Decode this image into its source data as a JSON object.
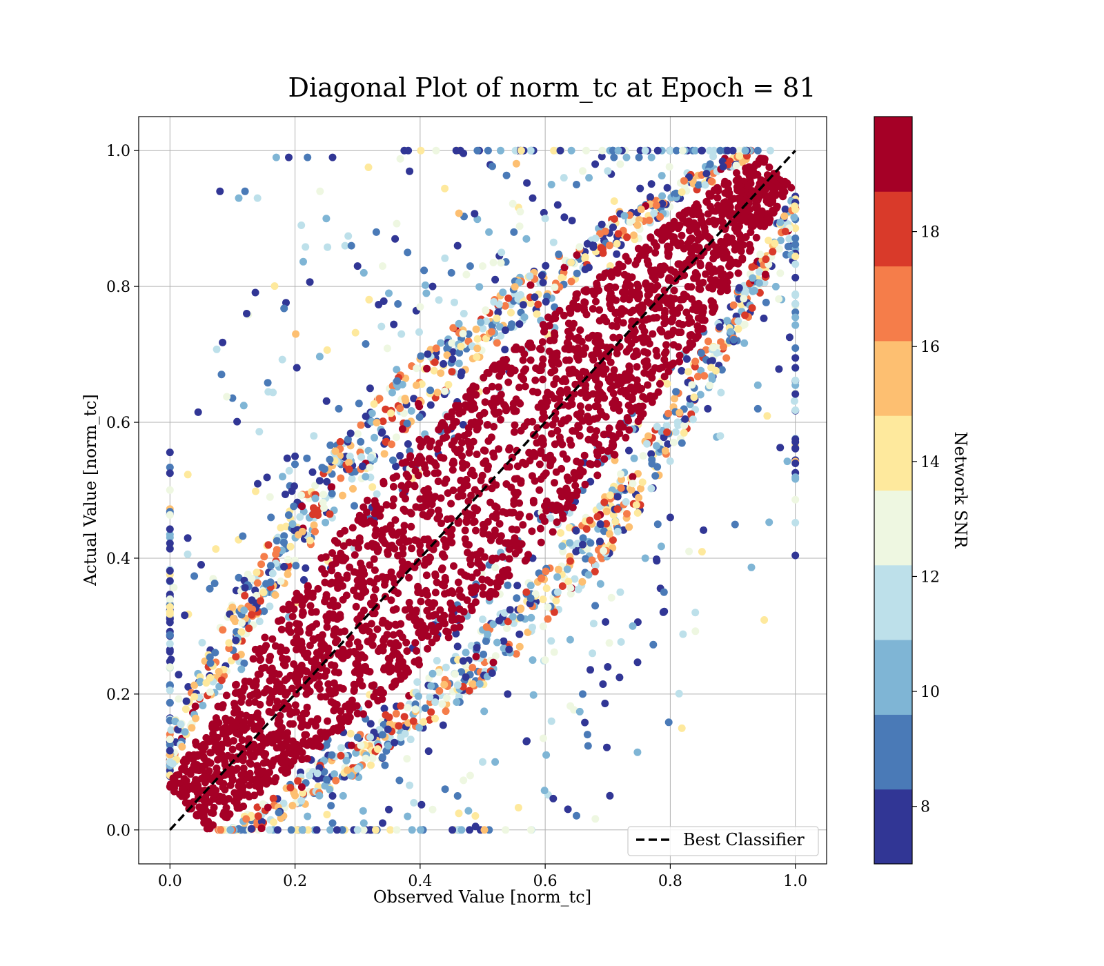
{
  "chart_data": {
    "type": "scatter",
    "title": "Diagonal Plot of norm_tc at Epoch = 81",
    "xlabel": "Observed Value [norm_tc]",
    "ylabel": "Actual Value [norm_tc]",
    "xlim": [
      -0.05,
      1.05
    ],
    "ylim": [
      -0.05,
      1.05
    ],
    "xticks": [
      "0.0",
      "0.2",
      "0.4",
      "0.6",
      "0.8",
      "1.0"
    ],
    "yticks": [
      "0.0",
      "0.2",
      "0.4",
      "0.6",
      "0.8",
      "1.0"
    ],
    "grid": true,
    "reference_line": {
      "name": "Best Classifier",
      "x": [
        0,
        1
      ],
      "y": [
        0,
        1
      ],
      "style": "dashed",
      "color": "#000000"
    },
    "legend": {
      "position": "lower-right",
      "entries": [
        "Best Classifier"
      ]
    },
    "colorbar": {
      "label": "Network SNR",
      "range": [
        7,
        20
      ],
      "ticks": [
        "8",
        "10",
        "12",
        "14",
        "16",
        "18"
      ],
      "bins": [
        {
          "from": 7.0,
          "to": 8.3,
          "color": "#313695"
        },
        {
          "from": 8.3,
          "to": 9.6,
          "color": "#4a7ab7"
        },
        {
          "from": 9.6,
          "to": 10.9,
          "color": "#7fb5d5"
        },
        {
          "from": 10.9,
          "to": 12.2,
          "color": "#bde0ea"
        },
        {
          "from": 12.2,
          "to": 13.5,
          "color": "#eef7e1"
        },
        {
          "from": 13.5,
          "to": 14.8,
          "color": "#fee99d"
        },
        {
          "from": 14.8,
          "to": 16.1,
          "color": "#fdbf71"
        },
        {
          "from": 16.1,
          "to": 17.4,
          "color": "#f57d4a"
        },
        {
          "from": 17.4,
          "to": 18.7,
          "color": "#d93a2a"
        },
        {
          "from": 18.7,
          "to": 20.0,
          "color": "#a50026"
        }
      ]
    },
    "series": [
      {
        "name": "Network SNR",
        "description_values": "predicted vs true norm_tc; dense high-SNR core along y=x, scattered low-SNR outliers",
        "x": [
          0.08,
          0.11,
          0.12,
          0.14,
          0.17,
          0.19,
          0.21,
          0.22,
          0.24,
          0.25,
          0.26,
          0.28,
          0.29,
          0.3,
          0.31,
          0.33,
          0.34,
          0.35,
          0.36,
          0.37,
          0.38,
          0.4,
          0.41,
          0.42,
          0.43,
          0.45,
          0.46,
          0.47,
          0.48,
          0.5,
          0.51,
          0.52,
          0.53,
          0.55,
          0.56,
          0.57,
          0.58,
          0.6,
          0.61,
          0.62,
          0.63,
          0.65,
          0.66,
          0.67,
          0.68,
          0.7,
          0.71,
          0.72,
          0.73,
          0.75,
          0.76,
          0.77,
          0.78,
          0.8,
          0.81,
          0.82,
          0.84,
          0.85,
          0.87,
          0.88,
          0.9,
          0.92,
          0.94,
          0.96,
          0.31,
          0.35,
          0.39,
          0.44,
          0.48,
          0.52,
          0.57,
          0.61,
          0.66,
          0.7,
          0.74,
          0.79,
          0.83,
          0.22,
          0.26,
          0.3,
          0.34,
          0.38,
          0.42,
          0.46,
          0.5,
          0.54,
          0.58,
          0.62,
          0.66,
          0.7,
          0.74,
          0.86,
          0.84,
          0.78,
          0.74,
          0.7,
          0.66,
          0.62,
          0.58,
          0.54,
          0.5,
          0.46,
          0.42,
          0.38,
          0.34,
          0.3,
          0.26,
          0.6,
          0.64,
          0.68,
          0.72,
          0.76,
          0.8,
          0.88,
          0.94,
          0.16,
          0.18,
          0.2,
          0.23,
          0.27,
          0.32
        ],
        "y": [
          0.94,
          0.93,
          0.94,
          0.93,
          0.99,
          0.99,
          0.89,
          0.99,
          0.94,
          0.9,
          0.99,
          0.86,
          0.86,
          0.83,
          0.82,
          0.88,
          0.83,
          0.79,
          0.87,
          0.73,
          0.85,
          0.77,
          0.79,
          0.8,
          0.78,
          0.82,
          0.86,
          0.76,
          0.83,
          0.83,
          0.88,
          0.81,
          0.85,
          0.88,
          0.91,
          0.87,
          0.93,
          0.9,
          0.95,
          0.92,
          0.96,
          0.95,
          0.97,
          0.96,
          0.98,
          0.97,
          0.99,
          0.98,
          0.99,
          0.99,
          1.0,
          0.99,
          1.0,
          1.0,
          1.0,
          1.0,
          1.0,
          1.0,
          1.0,
          1.0,
          1.0,
          1.0,
          1.0,
          1.0,
          0.01,
          0.03,
          0.04,
          0.06,
          0.08,
          0.1,
          0.13,
          0.16,
          0.2,
          0.24,
          0.3,
          0.35,
          0.41,
          0.02,
          0.05,
          0.09,
          0.14,
          0.18,
          0.23,
          0.27,
          0.31,
          0.36,
          0.4,
          0.45,
          0.5,
          0.55,
          0.59,
          0.62,
          0.32,
          0.45,
          0.51,
          0.55,
          0.42,
          0.35,
          0.25,
          0.2,
          0.1,
          0.05,
          0.03,
          0.02,
          0.01,
          0.0,
          0.01,
          0.25,
          0.28,
          0.33,
          0.35,
          0.4,
          0.46,
          0.58,
          0.62,
          0.49,
          0.52,
          0.55,
          0.58,
          0.62,
          0.65
        ]
      }
    ]
  }
}
